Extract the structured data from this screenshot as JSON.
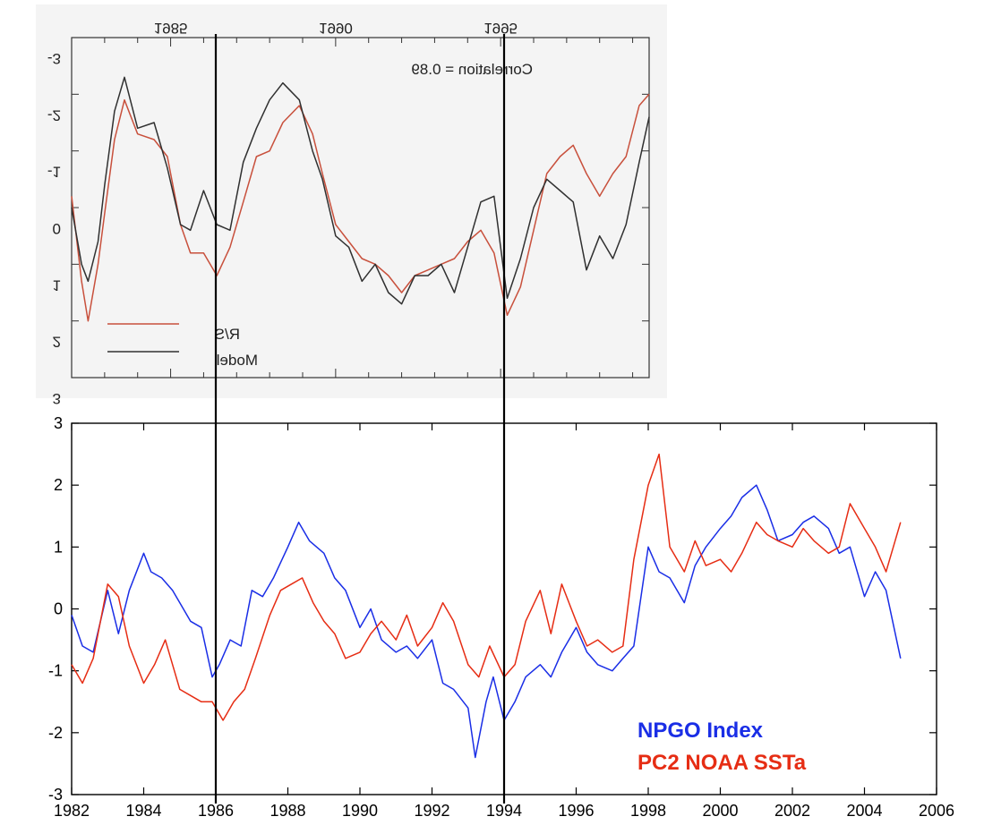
{
  "chart_data": [
    {
      "type": "line",
      "panel": "top",
      "rendering": "mirrored (text and axes appear flipped)",
      "title": "",
      "annotation": "Correlation = 0.89",
      "x_tick_labels": [
        "1985",
        "1990",
        "1995"
      ],
      "y_tick_labels": [
        "-3",
        "-2",
        "-1",
        "0",
        "1",
        "2",
        "3"
      ],
      "xlim": [
        1982,
        1999.5
      ],
      "ylim": [
        -3,
        3
      ],
      "grid": false,
      "legend_position": "bottom-left",
      "colors": {
        "R/S": "#c8503c",
        "Model": "#303030",
        "background": "#f4f4f4"
      },
      "series": [
        {
          "name": "R/S",
          "x": [
            1982.0,
            1982.3,
            1982.5,
            1982.8,
            1983.0,
            1983.3,
            1983.6,
            1984.0,
            1984.5,
            1984.9,
            1985.3,
            1985.6,
            1986.0,
            1986.4,
            1986.8,
            1987.2,
            1987.6,
            1988.0,
            1988.4,
            1988.9,
            1989.3,
            1989.6,
            1990.0,
            1990.4,
            1990.8,
            1991.2,
            1991.6,
            1992.0,
            1992.4,
            1992.8,
            1993.2,
            1993.6,
            1994.0,
            1994.4,
            1994.8,
            1995.2,
            1995.6,
            1996.0,
            1996.4,
            1996.8,
            1997.2,
            1997.6,
            1998.0,
            1998.4,
            1998.8,
            1999.2,
            1999.5
          ],
          "y": [
            -0.2,
            1.3,
            2.0,
            1.0,
            0.1,
            -1.2,
            -1.9,
            -1.3,
            -1.2,
            -0.9,
            0.3,
            0.8,
            0.8,
            1.2,
            0.7,
            -0.1,
            -0.9,
            -1.0,
            -1.5,
            -1.8,
            -1.3,
            -0.6,
            0.3,
            0.6,
            0.9,
            1.0,
            1.2,
            1.5,
            1.2,
            1.1,
            1.0,
            0.9,
            0.6,
            0.4,
            0.8,
            1.9,
            1.4,
            0.4,
            -0.6,
            -0.9,
            -1.1,
            -0.6,
            -0.2,
            -0.6,
            -0.9,
            -1.8,
            -2.0
          ]
        },
        {
          "name": "Model",
          "x": [
            1982.0,
            1982.3,
            1982.5,
            1982.8,
            1983.0,
            1983.3,
            1983.6,
            1984.0,
            1984.5,
            1984.9,
            1985.3,
            1985.6,
            1986.0,
            1986.4,
            1986.8,
            1987.2,
            1987.6,
            1988.0,
            1988.4,
            1988.9,
            1989.3,
            1989.6,
            1990.0,
            1990.4,
            1990.8,
            1991.2,
            1991.6,
            1992.0,
            1992.4,
            1992.8,
            1993.2,
            1993.6,
            1994.0,
            1994.4,
            1994.8,
            1995.2,
            1995.6,
            1996.0,
            1996.4,
            1996.8,
            1997.2,
            1997.6,
            1998.0,
            1998.4,
            1998.8,
            1999.2,
            1999.5
          ],
          "y": [
            0.0,
            1.0,
            1.3,
            0.6,
            -0.4,
            -1.7,
            -2.3,
            -1.4,
            -1.5,
            -0.7,
            0.3,
            0.4,
            -0.3,
            0.3,
            0.4,
            -0.8,
            -1.4,
            -1.9,
            -2.2,
            -1.9,
            -1.0,
            -0.5,
            0.5,
            0.7,
            1.3,
            1.0,
            1.5,
            1.7,
            1.2,
            1.2,
            1.0,
            1.5,
            0.7,
            -0.1,
            -0.2,
            1.6,
            0.9,
            0.0,
            -0.5,
            -0.3,
            -0.1,
            1.1,
            0.5,
            0.9,
            0.3,
            -0.8,
            -1.6
          ]
        }
      ]
    },
    {
      "type": "line",
      "panel": "bottom",
      "title": "",
      "xlabel": "",
      "ylabel": "",
      "x_ticks": [
        1982,
        1984,
        1986,
        1988,
        1990,
        1992,
        1994,
        1996,
        1998,
        2000,
        2002,
        2004,
        2006
      ],
      "y_ticks": [
        -3,
        -2,
        -1,
        0,
        1,
        2,
        3
      ],
      "xlim": [
        1982,
        2006
      ],
      "ylim": [
        -3,
        3
      ],
      "grid": false,
      "legend_position": "bottom-right",
      "vertical_markers": [
        1986,
        1994
      ],
      "colors": {
        "NPGO Index": "#1a2ee6",
        "PC2 NOAA SSTa": "#e62d14",
        "marker_line": "#000000"
      },
      "series": [
        {
          "name": "NPGO Index",
          "x": [
            1982.0,
            1982.3,
            1982.6,
            1983.0,
            1983.3,
            1983.6,
            1984.0,
            1984.2,
            1984.5,
            1984.8,
            1985.0,
            1985.3,
            1985.6,
            1985.9,
            1986.1,
            1986.4,
            1986.7,
            1987.0,
            1987.3,
            1987.6,
            1988.0,
            1988.3,
            1988.6,
            1989.0,
            1989.3,
            1989.6,
            1990.0,
            1990.3,
            1990.6,
            1991.0,
            1991.3,
            1991.6,
            1992.0,
            1992.3,
            1992.6,
            1993.0,
            1993.2,
            1993.5,
            1993.7,
            1994.0,
            1994.3,
            1994.6,
            1995.0,
            1995.3,
            1995.6,
            1996.0,
            1996.3,
            1996.6,
            1997.0,
            1997.3,
            1997.6,
            1998.0,
            1998.3,
            1998.6,
            1999.0,
            1999.3,
            1999.6,
            2000.0,
            2000.3,
            2000.6,
            2001.0,
            2001.3,
            2001.6,
            2002.0,
            2002.3,
            2002.6,
            2003.0,
            2003.3,
            2003.6,
            2004.0,
            2004.3,
            2004.6,
            2005.0
          ],
          "y": [
            -0.1,
            -0.6,
            -0.7,
            0.3,
            -0.4,
            0.3,
            0.9,
            0.6,
            0.5,
            0.3,
            0.1,
            -0.2,
            -0.3,
            -1.1,
            -0.9,
            -0.5,
            -0.6,
            0.3,
            0.2,
            0.5,
            1.0,
            1.4,
            1.1,
            0.9,
            0.5,
            0.3,
            -0.3,
            0.0,
            -0.5,
            -0.7,
            -0.6,
            -0.8,
            -0.5,
            -1.2,
            -1.3,
            -1.6,
            -2.4,
            -1.5,
            -1.1,
            -1.8,
            -1.5,
            -1.1,
            -0.9,
            -1.1,
            -0.7,
            -0.3,
            -0.7,
            -0.9,
            -1.0,
            -0.8,
            -0.6,
            1.0,
            0.6,
            0.5,
            0.1,
            0.7,
            1.0,
            1.3,
            1.5,
            1.8,
            2.0,
            1.6,
            1.1,
            1.2,
            1.4,
            1.5,
            1.3,
            0.9,
            1.0,
            0.2,
            0.6,
            0.3,
            -0.8
          ]
        },
        {
          "name": "PC2 NOAA SSTa",
          "x": [
            1982.0,
            1982.3,
            1982.6,
            1983.0,
            1983.3,
            1983.6,
            1984.0,
            1984.3,
            1984.6,
            1985.0,
            1985.3,
            1985.6,
            1985.9,
            1986.2,
            1986.5,
            1986.8,
            1987.1,
            1987.5,
            1987.8,
            1988.1,
            1988.4,
            1988.7,
            1989.0,
            1989.3,
            1989.6,
            1990.0,
            1990.3,
            1990.6,
            1991.0,
            1991.3,
            1991.6,
            1992.0,
            1992.3,
            1992.6,
            1993.0,
            1993.3,
            1993.6,
            1994.0,
            1994.3,
            1994.6,
            1995.0,
            1995.3,
            1995.6,
            1996.0,
            1996.3,
            1996.6,
            1997.0,
            1997.3,
            1997.6,
            1998.0,
            1998.3,
            1998.6,
            1999.0,
            1999.3,
            1999.6,
            2000.0,
            2000.3,
            2000.6,
            2001.0,
            2001.3,
            2001.6,
            2002.0,
            2002.3,
            2002.6,
            2003.0,
            2003.3,
            2003.6,
            2004.0,
            2004.3,
            2004.6,
            2005.0
          ],
          "y": [
            -0.9,
            -1.2,
            -0.8,
            0.4,
            0.2,
            -0.6,
            -1.2,
            -0.9,
            -0.5,
            -1.3,
            -1.4,
            -1.5,
            -1.5,
            -1.8,
            -1.5,
            -1.3,
            -0.8,
            -0.1,
            0.3,
            0.4,
            0.5,
            0.1,
            -0.2,
            -0.4,
            -0.8,
            -0.7,
            -0.4,
            -0.2,
            -0.5,
            -0.1,
            -0.6,
            -0.3,
            0.1,
            -0.2,
            -0.9,
            -1.1,
            -0.6,
            -1.1,
            -0.9,
            -0.2,
            0.3,
            -0.4,
            0.4,
            -0.2,
            -0.6,
            -0.5,
            -0.7,
            -0.6,
            0.8,
            2.0,
            2.5,
            1.0,
            0.6,
            1.1,
            0.7,
            0.8,
            0.6,
            0.9,
            1.4,
            1.2,
            1.1,
            1.0,
            1.3,
            1.1,
            0.9,
            1.0,
            1.7,
            1.3,
            1.0,
            0.6,
            1.4
          ]
        }
      ]
    }
  ]
}
